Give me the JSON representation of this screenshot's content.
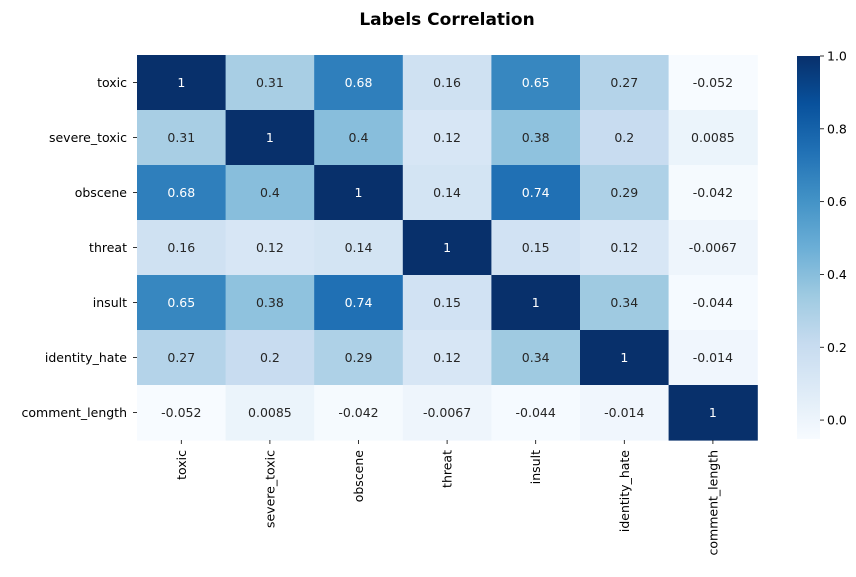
{
  "chart_data": {
    "type": "heatmap",
    "title": "Labels Correlation",
    "x_labels": [
      "toxic",
      "severe_toxic",
      "obscene",
      "threat",
      "insult",
      "identity_hate",
      "comment_length"
    ],
    "y_labels": [
      "toxic",
      "severe_toxic",
      "obscene",
      "threat",
      "insult",
      "identity_hate",
      "comment_length"
    ],
    "values": [
      [
        1,
        0.31,
        0.68,
        0.16,
        0.65,
        0.27,
        -0.052
      ],
      [
        0.31,
        1,
        0.4,
        0.12,
        0.38,
        0.2,
        0.0085
      ],
      [
        0.68,
        0.4,
        1,
        0.14,
        0.74,
        0.29,
        -0.042
      ],
      [
        0.16,
        0.12,
        0.14,
        1,
        0.15,
        0.12,
        -0.0067
      ],
      [
        0.65,
        0.38,
        0.74,
        0.15,
        1,
        0.34,
        -0.044
      ],
      [
        0.27,
        0.2,
        0.29,
        0.12,
        0.34,
        1,
        -0.014
      ],
      [
        -0.052,
        0.0085,
        -0.042,
        -0.0067,
        -0.044,
        -0.014,
        1
      ]
    ],
    "annotations": [
      [
        "1",
        "0.31",
        "0.68",
        "0.16",
        "0.65",
        "0.27",
        "-0.052"
      ],
      [
        "0.31",
        "1",
        "0.4",
        "0.12",
        "0.38",
        "0.2",
        "0.0085"
      ],
      [
        "0.68",
        "0.4",
        "1",
        "0.14",
        "0.74",
        "0.29",
        "-0.042"
      ],
      [
        "0.16",
        "0.12",
        "0.14",
        "1",
        "0.15",
        "0.12",
        "-0.0067"
      ],
      [
        "0.65",
        "0.38",
        "0.74",
        "0.15",
        "1",
        "0.34",
        "-0.044"
      ],
      [
        "0.27",
        "0.2",
        "0.29",
        "0.12",
        "0.34",
        "1",
        "-0.014"
      ],
      [
        "-0.052",
        "0.0085",
        "-0.042",
        "-0.0067",
        "-0.044",
        "-0.014",
        "1"
      ]
    ],
    "colormap": "Blues",
    "color_range": [
      -0.052,
      1.0
    ],
    "colorbar_ticks": [
      0.0,
      0.2,
      0.4,
      0.6,
      0.8,
      1.0
    ],
    "colorbar_tick_labels": [
      "0.0",
      "0.2",
      "0.4",
      "0.6",
      "0.8",
      "1.0"
    ]
  }
}
